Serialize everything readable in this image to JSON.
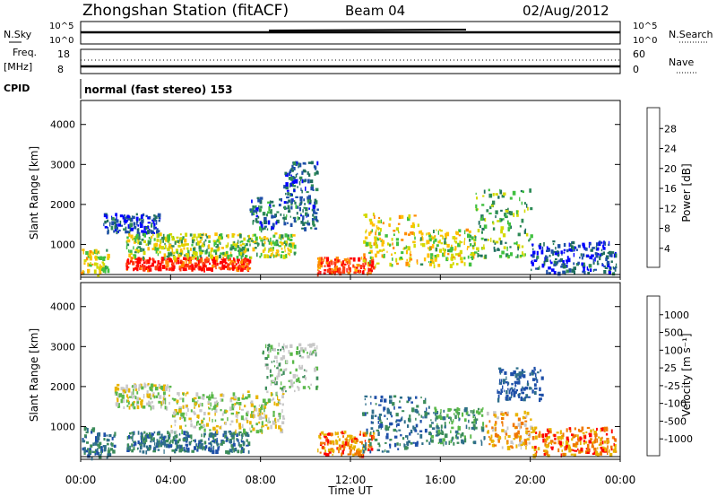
{
  "header": {
    "station": "Zhongshan Station (fitACF)",
    "beam": "Beam 04",
    "date": "02/Aug/2012"
  },
  "mini_panels": {
    "nsky_label": "N.Sky",
    "nsky_ticks": [
      "10^5",
      "10^0"
    ],
    "nsearch_label": "N.Search",
    "nsearch_ticks": [
      "10^5",
      "10^0"
    ],
    "freq_label": "Freq.",
    "freq_unit": "[MHz]",
    "freq_ticks": [
      "18",
      "8"
    ],
    "nave_label": "Nave",
    "nave_ticks": [
      "60",
      "0"
    ],
    "cpid_label": "CPID",
    "cpid_text": "normal (fast stereo) 153"
  },
  "chart_data": [
    {
      "type": "heatmap",
      "name": "power",
      "ylabel": "Slant Range [km]",
      "y_ticks": [
        "4000",
        "3000",
        "2000",
        "1000"
      ],
      "y_tick_values": [
        4000,
        3000,
        2000,
        1000
      ],
      "ylim": [
        180,
        4600
      ],
      "colorbar_label": "Power [dB]",
      "colorbar_ticks": [
        "28",
        "24",
        "20",
        "16",
        "12",
        "8",
        "4"
      ],
      "colorbar_colors": [
        "#ff0000",
        "#ff3c14",
        "#ff8c00",
        "#ffbf00",
        "#d4d900",
        "#40c040",
        "#2e8b57",
        "#1e6e5e",
        "#1e4fa8",
        "#0000ff"
      ],
      "regions": [
        {
          "t0": 0.0,
          "t1": 1.2,
          "r0": 250,
          "r1": 900,
          "level": 0.55
        },
        {
          "t0": 1.0,
          "t1": 3.5,
          "r0": 1300,
          "r1": 1800,
          "level": 0.15
        },
        {
          "t0": 2.0,
          "t1": 7.5,
          "r0": 400,
          "r1": 700,
          "level": 0.9
        },
        {
          "t0": 2.0,
          "t1": 9.5,
          "r0": 700,
          "r1": 1300,
          "level": 0.5
        },
        {
          "t0": 7.5,
          "t1": 10.5,
          "r0": 1400,
          "r1": 2200,
          "level": 0.25
        },
        {
          "t0": 9.0,
          "t1": 10.5,
          "r0": 2200,
          "r1": 3100,
          "level": 0.2
        },
        {
          "t0": 10.5,
          "t1": 13.0,
          "r0": 300,
          "r1": 700,
          "level": 0.85
        },
        {
          "t0": 12.5,
          "t1": 15.0,
          "r0": 500,
          "r1": 1800,
          "level": 0.6
        },
        {
          "t0": 15.0,
          "t1": 17.5,
          "r0": 500,
          "r1": 1400,
          "level": 0.55
        },
        {
          "t0": 17.5,
          "t1": 20.0,
          "r0": 700,
          "r1": 2400,
          "level": 0.4
        },
        {
          "t0": 20.0,
          "t1": 23.8,
          "r0": 300,
          "r1": 1100,
          "level": 0.15
        }
      ]
    },
    {
      "type": "heatmap",
      "name": "velocity",
      "ylabel": "Slant Range [km]",
      "y_ticks": [
        "4000",
        "3000",
        "2000",
        "1000"
      ],
      "y_tick_values": [
        4000,
        3000,
        2000,
        1000
      ],
      "ylim": [
        180,
        4600
      ],
      "colorbar_label": "Velocity [m s⁻¹]",
      "colorbar_ticks": [
        "1000",
        "500",
        "100",
        "25",
        "-25",
        "-100",
        "-500",
        "-1000"
      ],
      "colorbar_colors": [
        "#1e4fa8",
        "#2e6e8a",
        "#3c8c5a",
        "#5ab84a",
        "#c8c8c8",
        "#e8b400",
        "#f07800",
        "#ff0000"
      ],
      "regions": [
        {
          "t0": 0.0,
          "t1": 1.5,
          "r0": 250,
          "r1": 1000,
          "level": 0.8
        },
        {
          "t0": 1.5,
          "t1": 4.0,
          "r0": 1500,
          "r1": 2100,
          "level": 0.45
        },
        {
          "t0": 2.0,
          "t1": 7.5,
          "r0": 400,
          "r1": 900,
          "level": 0.8
        },
        {
          "t0": 4.0,
          "t1": 9.0,
          "r0": 900,
          "r1": 1900,
          "level": 0.45
        },
        {
          "t0": 8.0,
          "t1": 10.5,
          "r0": 1900,
          "r1": 3100,
          "level": 0.55
        },
        {
          "t0": 10.5,
          "t1": 13.0,
          "r0": 300,
          "r1": 900,
          "level": 0.2
        },
        {
          "t0": 12.5,
          "t1": 15.5,
          "r0": 400,
          "r1": 1800,
          "level": 0.8
        },
        {
          "t0": 15.5,
          "t1": 18.0,
          "r0": 600,
          "r1": 1500,
          "level": 0.7
        },
        {
          "t0": 18.0,
          "t1": 20.0,
          "r0": 500,
          "r1": 1400,
          "level": 0.3
        },
        {
          "t0": 18.5,
          "t1": 20.5,
          "r0": 1700,
          "r1": 2500,
          "level": 0.95
        },
        {
          "t0": 20.0,
          "t1": 23.8,
          "r0": 300,
          "r1": 1000,
          "level": 0.2
        }
      ]
    }
  ],
  "x_axis": {
    "label": "Time UT",
    "ticks": [
      "00:00",
      "04:00",
      "08:00",
      "12:00",
      "16:00",
      "20:00",
      "00:00"
    ],
    "tick_values": [
      0,
      4,
      8,
      12,
      16,
      20,
      24
    ],
    "xlim": [
      0,
      24
    ]
  }
}
